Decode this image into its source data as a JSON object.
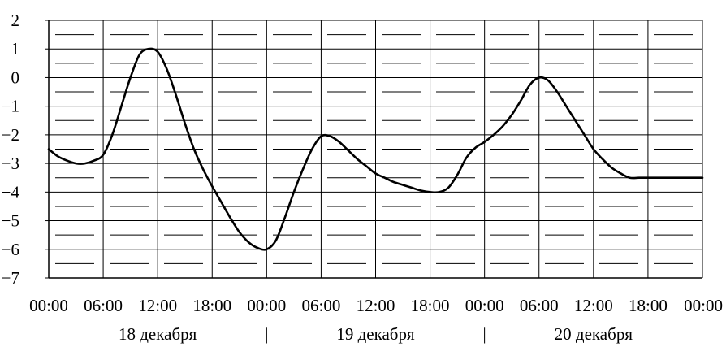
{
  "chart_data": {
    "type": "line",
    "title": "",
    "xlabel": "",
    "ylabel": "",
    "ylim": [
      -7,
      2
    ],
    "yticks": [
      2,
      1,
      0,
      -1,
      -2,
      -3,
      -4,
      -5,
      -6,
      -7
    ],
    "ytick_labels": [
      "2",
      "1",
      "0",
      "−1",
      "−2",
      "−3",
      "−4",
      "−5",
      "−6",
      "−7"
    ],
    "xlim_hours": [
      0,
      72
    ],
    "xtick_hours": [
      0,
      6,
      12,
      18,
      24,
      30,
      36,
      42,
      48,
      54,
      60,
      66,
      72
    ],
    "xtick_labels": [
      "00:00",
      "06:00",
      "12:00",
      "18:00",
      "00:00",
      "06:00",
      "12:00",
      "18:00",
      "00:00",
      "06:00",
      "12:00",
      "18:00",
      "00:00"
    ],
    "day_labels": [
      {
        "label": "18 декабря",
        "center_hour": 12
      },
      {
        "label": "19 декабря",
        "center_hour": 36
      },
      {
        "label": "20 декабря",
        "center_hour": 60
      }
    ],
    "day_separator_hours": [
      24,
      48
    ],
    "day_separator_glyph": "|",
    "grid": true,
    "line_color": "#000000",
    "series": [
      {
        "x": [
          0,
          1,
          2,
          3,
          4,
          5,
          6,
          7,
          8,
          9,
          10,
          11,
          12,
          13,
          14,
          15,
          16,
          17,
          18,
          19,
          20,
          21,
          22,
          23,
          24,
          25,
          26,
          27,
          28,
          29,
          30,
          31,
          32,
          33,
          34,
          35,
          36,
          37,
          38,
          39,
          40,
          41,
          42,
          43,
          44,
          45,
          46,
          47,
          48,
          49,
          50,
          51,
          52,
          53,
          54,
          55,
          56,
          57,
          58,
          59,
          60,
          61,
          62,
          63,
          64,
          65,
          66,
          67,
          68,
          69,
          70,
          71,
          72
        ],
        "y": [
          -2.5,
          -2.75,
          -2.9,
          -3.0,
          -3.0,
          -2.9,
          -2.7,
          -2.0,
          -1.0,
          0.0,
          0.8,
          1.0,
          0.9,
          0.3,
          -0.6,
          -1.6,
          -2.5,
          -3.2,
          -3.8,
          -4.35,
          -4.9,
          -5.4,
          -5.75,
          -5.95,
          -6.0,
          -5.7,
          -4.9,
          -4.0,
          -3.2,
          -2.5,
          -2.05,
          -2.05,
          -2.25,
          -2.55,
          -2.85,
          -3.1,
          -3.35,
          -3.5,
          -3.65,
          -3.75,
          -3.85,
          -3.95,
          -4.0,
          -4.0,
          -3.85,
          -3.4,
          -2.8,
          -2.45,
          -2.25,
          -2.0,
          -1.7,
          -1.3,
          -0.8,
          -0.25,
          0.0,
          -0.1,
          -0.5,
          -1.0,
          -1.5,
          -2.0,
          -2.5,
          -2.85,
          -3.15,
          -3.35,
          -3.5,
          -3.5,
          -3.5,
          -3.5,
          -3.5,
          -3.5,
          -3.5,
          -3.5,
          -3.5
        ]
      }
    ]
  }
}
